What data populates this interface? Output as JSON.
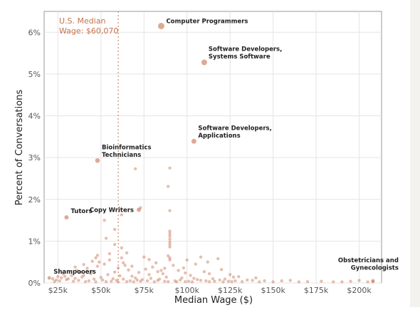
{
  "chart_data": {
    "type": "scatter",
    "xlabel": "Median Wage ($)",
    "ylabel": "Percent of Conversations",
    "xlim": [
      17000,
      213000
    ],
    "ylim": [
      0,
      6.5
    ],
    "x_ticks": [
      {
        "value": 25000,
        "label": "$25k"
      },
      {
        "value": 50000,
        "label": "$50k"
      },
      {
        "value": 75000,
        "label": "$75k"
      },
      {
        "value": 100000,
        "label": "$100k"
      },
      {
        "value": 125000,
        "label": "$125k"
      },
      {
        "value": 150000,
        "label": "$150k"
      },
      {
        "value": 175000,
        "label": "$175k"
      },
      {
        "value": 200000,
        "label": "$200k"
      }
    ],
    "y_ticks": [
      {
        "value": 0,
        "label": "0%"
      },
      {
        "value": 1,
        "label": "1%"
      },
      {
        "value": 2,
        "label": "2%"
      },
      {
        "value": 3,
        "label": "3%"
      },
      {
        "value": 4,
        "label": "4%"
      },
      {
        "value": 5,
        "label": "5%"
      },
      {
        "value": 6,
        "label": "6%"
      }
    ],
    "grid": true,
    "point_color": "#c8714e",
    "median_line": {
      "value": 60070,
      "label_line1": "U.S. Median",
      "label_line2": "Wage: $60,070",
      "color": "#c8714e"
    },
    "labeled_points": [
      {
        "x": 85000,
        "y": 6.15,
        "size": 4.5,
        "label": [
          "Computer Programmers"
        ],
        "anchor": "right"
      },
      {
        "x": 110000,
        "y": 5.28,
        "size": 4,
        "label": [
          "Software Developers,",
          "Systems Software"
        ],
        "anchor": "right-up"
      },
      {
        "x": 104000,
        "y": 3.39,
        "size": 3.5,
        "label": [
          "Software Developers,",
          "Applications"
        ],
        "anchor": "right-up"
      },
      {
        "x": 48000,
        "y": 2.93,
        "size": 3.3,
        "label": [
          "Bioinformatics",
          "Technicians"
        ],
        "anchor": "right-up"
      },
      {
        "x": 30000,
        "y": 1.57,
        "size": 3,
        "label": [
          "Tutors"
        ],
        "anchor": "right-up"
      },
      {
        "x": 72000,
        "y": 1.75,
        "size": 3,
        "label": [
          "Copy Writers"
        ],
        "anchor": "left"
      },
      {
        "x": 20000,
        "y": 0.12,
        "size": 2.5,
        "label": [
          "Shampooers"
        ],
        "anchor": "right-up"
      },
      {
        "x": 208000,
        "y": 0.05,
        "size": 2.5,
        "label": [
          "Obstetricians and",
          "Gynecologists"
        ],
        "anchor": "left-up"
      }
    ],
    "points": [
      [
        70000,
        2.73
      ],
      [
        90000,
        2.75
      ],
      [
        89000,
        2.31
      ],
      [
        90000,
        1.73
      ],
      [
        73000,
        1.8
      ],
      [
        62000,
        1.63
      ],
      [
        58000,
        1.28
      ],
      [
        52000,
        1.5
      ],
      [
        53000,
        1.07
      ],
      [
        90000,
        1.24
      ],
      [
        90000,
        1.18
      ],
      [
        90000,
        1.12
      ],
      [
        90000,
        1.05
      ],
      [
        90000,
        0.98
      ],
      [
        90000,
        0.92
      ],
      [
        90000,
        0.86
      ],
      [
        89000,
        0.65
      ],
      [
        90000,
        0.6
      ],
      [
        90000,
        0.55
      ],
      [
        75000,
        0.62
      ],
      [
        62000,
        0.6
      ],
      [
        63000,
        0.48
      ],
      [
        55000,
        0.7
      ],
      [
        47000,
        0.6
      ],
      [
        49000,
        0.5
      ],
      [
        52000,
        0.45
      ],
      [
        68000,
        0.4
      ],
      [
        80000,
        0.38
      ],
      [
        100000,
        0.55
      ],
      [
        105000,
        0.45
      ],
      [
        108000,
        0.62
      ],
      [
        112000,
        0.5
      ],
      [
        118000,
        0.58
      ],
      [
        95000,
        0.3
      ],
      [
        60000,
        0.36
      ],
      [
        55000,
        0.55
      ],
      [
        64000,
        0.42
      ],
      [
        72000,
        0.25
      ],
      [
        85000,
        0.3
      ],
      [
        98000,
        0.36
      ],
      [
        110000,
        0.27
      ],
      [
        120000,
        0.32
      ],
      [
        125000,
        0.2
      ],
      [
        130000,
        0.15
      ],
      [
        140000,
        0.12
      ],
      [
        155000,
        0.05
      ],
      [
        170000,
        0.03
      ],
      [
        185000,
        0.02
      ],
      [
        195000,
        0.04
      ],
      [
        200000,
        0.06
      ],
      [
        205000,
        0.02
      ],
      [
        42000,
        0.35
      ],
      [
        45000,
        0.28
      ],
      [
        48000,
        0.4
      ],
      [
        38000,
        0.25
      ],
      [
        33000,
        0.18
      ],
      [
        28000,
        0.22
      ],
      [
        25000,
        0.15
      ],
      [
        22000,
        0.1
      ],
      [
        36000,
        0.3
      ],
      [
        40000,
        0.18
      ],
      [
        44000,
        0.22
      ],
      [
        58000,
        0.26
      ],
      [
        66000,
        0.31
      ],
      [
        78000,
        0.2
      ],
      [
        88000,
        0.14
      ],
      [
        102000,
        0.18
      ],
      [
        115000,
        0.1
      ],
      [
        122000,
        0.09
      ],
      [
        135000,
        0.07
      ],
      [
        145000,
        0.05
      ],
      [
        160000,
        0.06
      ],
      [
        178000,
        0.04
      ],
      [
        82000,
        0.48
      ],
      [
        76000,
        0.33
      ],
      [
        92000,
        0.42
      ],
      [
        86000,
        0.22
      ],
      [
        68000,
        0.16
      ],
      [
        54000,
        0.2
      ],
      [
        50000,
        0.13
      ],
      [
        30000,
        0.08
      ],
      [
        26000,
        0.05
      ],
      [
        35000,
        0.11
      ],
      [
        46000,
        0.09
      ],
      [
        57000,
        0.1
      ],
      [
        61000,
        0.17
      ],
      [
        70000,
        0.12
      ],
      [
        74000,
        0.08
      ],
      [
        84000,
        0.09
      ],
      [
        96000,
        0.07
      ],
      [
        104000,
        0.11
      ],
      [
        108000,
        0.06
      ],
      [
        116000,
        0.04
      ],
      [
        128000,
        0.05
      ],
      [
        132000,
        0.03
      ],
      [
        150000,
        0.02
      ],
      [
        27000,
        0.12
      ],
      [
        29000,
        0.16
      ],
      [
        31000,
        0.1
      ],
      [
        37000,
        0.06
      ],
      [
        39000,
        0.14
      ],
      [
        43000,
        0.05
      ],
      [
        51000,
        0.07
      ],
      [
        56000,
        0.04
      ],
      [
        59000,
        0.06
      ],
      [
        63000,
        0.09
      ],
      [
        67000,
        0.05
      ],
      [
        71000,
        0.07
      ],
      [
        77000,
        0.05
      ],
      [
        79000,
        0.11
      ],
      [
        83000,
        0.06
      ],
      [
        87000,
        0.04
      ],
      [
        93000,
        0.05
      ],
      [
        97000,
        0.12
      ],
      [
        101000,
        0.04
      ],
      [
        106000,
        0.08
      ],
      [
        111000,
        0.05
      ],
      [
        119000,
        0.07
      ],
      [
        124000,
        0.04
      ],
      [
        138000,
        0.06
      ],
      [
        23000,
        0.03
      ],
      [
        24000,
        0.07
      ],
      [
        34000,
        0.04
      ],
      [
        41000,
        0.03
      ],
      [
        47000,
        0.02
      ],
      [
        53000,
        0.03
      ],
      [
        60000,
        0.02
      ],
      [
        65000,
        0.03
      ],
      [
        69000,
        0.02
      ],
      [
        73000,
        0.04
      ],
      [
        81000,
        0.02
      ],
      [
        89000,
        0.03
      ],
      [
        94000,
        0.02
      ],
      [
        99000,
        0.03
      ],
      [
        103000,
        0.02
      ],
      [
        113000,
        0.03
      ],
      [
        121000,
        0.02
      ],
      [
        126000,
        0.03
      ],
      [
        142000,
        0.02
      ],
      [
        165000,
        0.02
      ],
      [
        190000,
        0.01
      ],
      [
        208000,
        0.01
      ],
      [
        62000,
        0.84
      ],
      [
        48000,
        0.66
      ],
      [
        58000,
        0.92
      ],
      [
        45000,
        0.52
      ],
      [
        40000,
        0.44
      ],
      [
        35000,
        0.38
      ],
      [
        65000,
        0.72
      ],
      [
        78000,
        0.56
      ],
      [
        83000,
        0.27
      ],
      [
        87000,
        0.35
      ],
      [
        99000,
        0.24
      ],
      [
        113000,
        0.22
      ],
      [
        127000,
        0.14
      ]
    ]
  }
}
